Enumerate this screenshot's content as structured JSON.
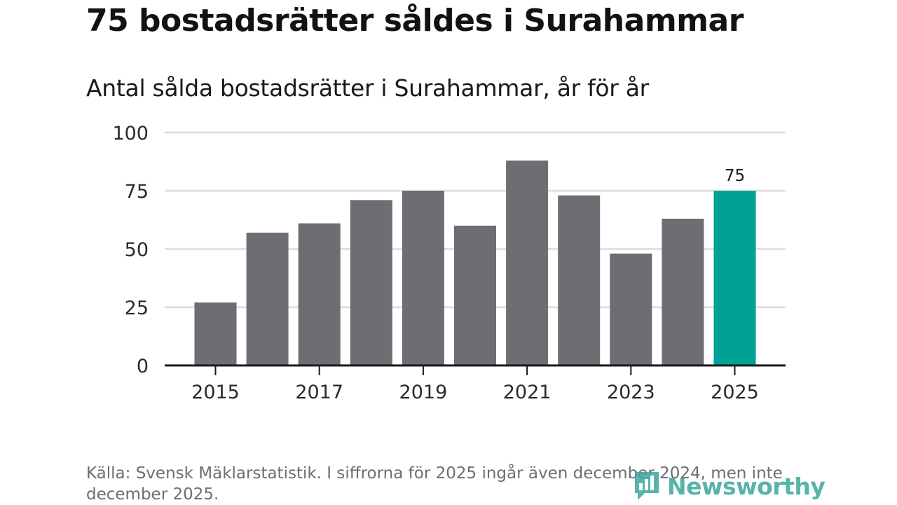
{
  "chart_data": {
    "type": "bar",
    "title": "75 bostadsrätter såldes i Surahammar",
    "subtitle": "Antal sålda bostadsrätter i Surahammar, år för år",
    "categories": [
      "2015",
      "2016",
      "2017",
      "2018",
      "2019",
      "2020",
      "2021",
      "2022",
      "2023",
      "2024",
      "2025"
    ],
    "values": [
      27,
      57,
      61,
      71,
      75,
      60,
      88,
      73,
      48,
      63,
      75
    ],
    "x_tick_labels": [
      "2015",
      "2017",
      "2019",
      "2021",
      "2023",
      "2025"
    ],
    "y_ticks": [
      0,
      25,
      50,
      75,
      100
    ],
    "ylim": [
      0,
      100
    ],
    "highlight_category": "2025",
    "highlight_label": "75",
    "grid": true,
    "colors": {
      "bar": "#6e6d73",
      "highlight": "#00a196",
      "grid": "#dcdcdc",
      "axis": "#1a1a1a"
    }
  },
  "footer": {
    "source": "Källa: Svensk Mäklarstatistik. I siffrorna för 2025 ingår även december 2024, men inte december 2025.",
    "brand": "Newsworthy"
  }
}
